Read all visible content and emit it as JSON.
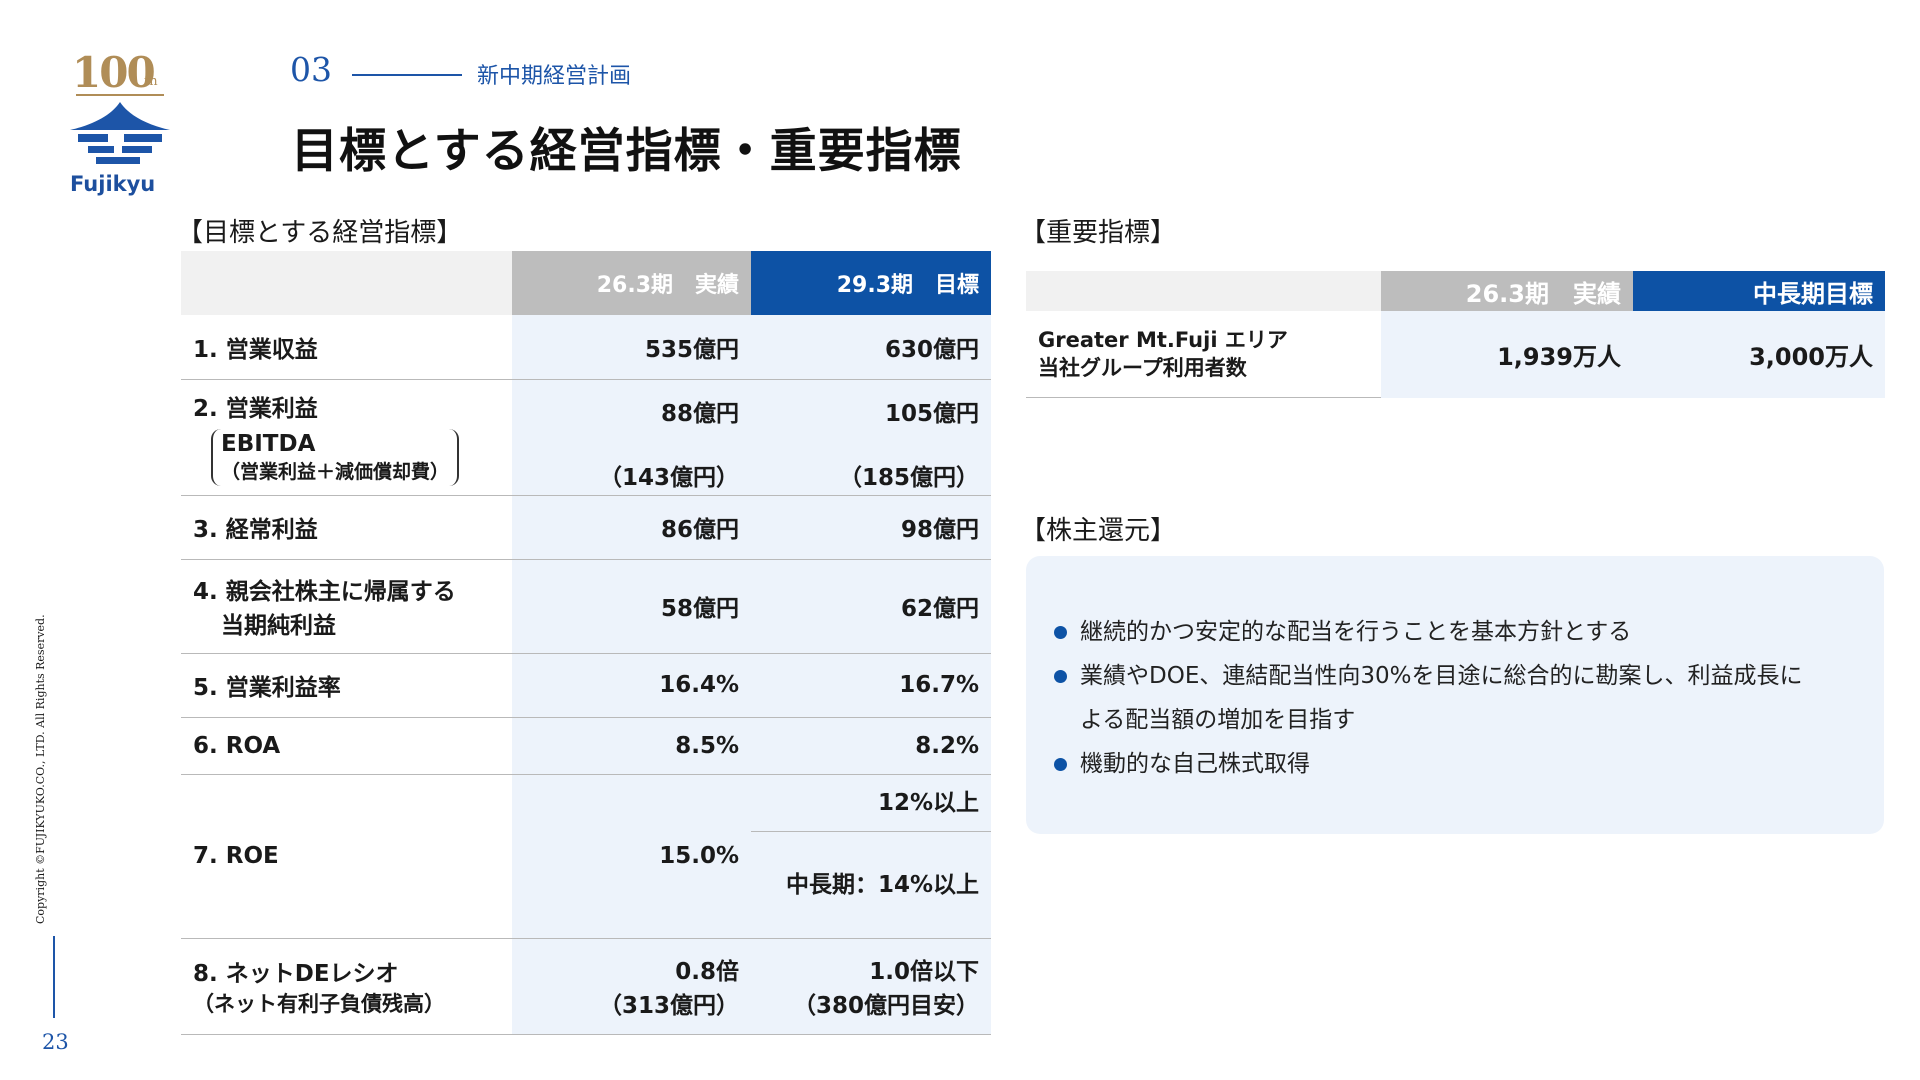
{
  "logo": {
    "anniversary": "100",
    "suffix": "th",
    "name": "Fujikyu"
  },
  "header": {
    "section_number": "03",
    "section_title": "新中期経営計画",
    "page_title": "目標とする経営指標・重要指標"
  },
  "footer": {
    "copyright": "Copyright ©FUJIKYUKO.CO., LTD. All Rights Reserved.",
    "page_number": "23"
  },
  "kpi": {
    "label": "【目標とする経営指標】",
    "col_actual": "26.3期　実績",
    "col_target": "29.3期　目標",
    "rows": [
      {
        "name": "1. 営業収益",
        "actual": "535億円",
        "target": "630億円"
      },
      {
        "name": "2. 営業利益",
        "actual": "88億円",
        "target": "105億円",
        "sub_name": "EBITDA",
        "sub_note": "（営業利益＋減価償却費）",
        "sub_actual": "（143億円）",
        "sub_target": "（185億円）"
      },
      {
        "name": "3. 経常利益",
        "actual": "86億円",
        "target": "98億円"
      },
      {
        "name_line1": "4. 親会社株主に帰属する",
        "name_line2": "当期純利益",
        "actual": "58億円",
        "target": "62億円"
      },
      {
        "name": "5. 営業利益率",
        "actual": "16.4%",
        "target": "16.7%"
      },
      {
        "name": "6. ROA",
        "actual": "8.5%",
        "target": "8.2%"
      },
      {
        "name": "7. ROE",
        "actual": "15.0%",
        "target": "12%以上",
        "target_mid": "中長期：14%以上"
      },
      {
        "name_line1": "8. ネットDEレシオ",
        "name_line2": "（ネット有利子負債残高）",
        "actual_line1": "0.8倍",
        "actual_line2": "（313億円）",
        "target_line1": "1.0倍以下",
        "target_line2": "（380億円目安）"
      }
    ]
  },
  "important": {
    "label": "【重要指標】",
    "col_actual": "26.3期　実績",
    "col_target": "中長期目標",
    "row": {
      "name_line1": "Greater Mt.Fuji エリア",
      "name_line2": "当社グループ利用者数",
      "actual": "1,939万人",
      "target": "3,000万人"
    }
  },
  "shareholder": {
    "label": "【株主還元】",
    "items": [
      "継続的かつ安定的な配当を行うことを基本方針とする",
      "業績やDOE、連結配当性向30%を目途に総合的に勘案し、利益成長に",
      "よる配当額の増加を目指す",
      "機動的な自己株式取得"
    ]
  },
  "colors": {
    "accent": "#0d52a5",
    "gold": "#b08d57",
    "light_blue": "#edf3fb",
    "gray_header": "#bdbdbd"
  }
}
